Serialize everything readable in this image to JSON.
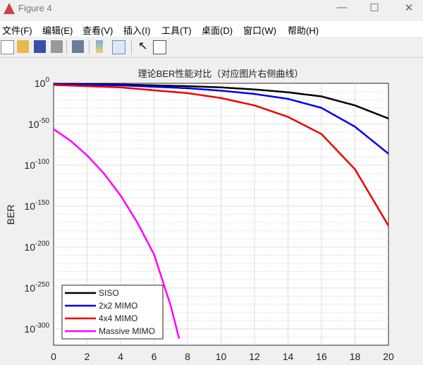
{
  "window": {
    "title": "Figure 4",
    "minimize": "—",
    "maximize": "☐",
    "close": "✕"
  },
  "menu": [
    "文件(F)",
    "编辑(E)",
    "查看(V)",
    "插入(I)",
    "工具(T)",
    "桌面(D)",
    "窗口(W)",
    "帮助(H)"
  ],
  "toolbar": [
    "new-file-icon",
    "open-folder-icon",
    "save-icon",
    "print-icon",
    "print-preview-icon",
    "colorbar-icon",
    "legend-icon",
    "pointer-icon",
    "property-editor-icon"
  ],
  "chart_data": {
    "type": "line",
    "title": "理论BER性能对比（对应图片右侧曲线）",
    "xlabel": "",
    "ylabel": "BER",
    "xlim": [
      0,
      20
    ],
    "ylim": [
      "1e-320",
      "1e0"
    ],
    "yscale": "log",
    "xticks": [
      "0",
      "2",
      "4",
      "6",
      "8",
      "10",
      "12",
      "14",
      "16",
      "18",
      "20"
    ],
    "yticks": [
      {
        "base": "10",
        "exp": "0"
      },
      {
        "base": "10",
        "exp": "-50"
      },
      {
        "base": "10",
        "exp": "-100"
      },
      {
        "base": "10",
        "exp": "-150"
      },
      {
        "base": "10",
        "exp": "-200"
      },
      {
        "base": "10",
        "exp": "-250"
      },
      {
        "base": "10",
        "exp": "-300"
      }
    ],
    "grid": true,
    "legend_position": "bottom-left",
    "series": [
      {
        "name": "SISO",
        "color": "#000000",
        "x": [
          0,
          4,
          8,
          10,
          12,
          14,
          16,
          18,
          20
        ],
        "log10_y": [
          -0.5,
          -1.5,
          -3.5,
          -5,
          -7.5,
          -11,
          -16,
          -27,
          -43
        ]
      },
      {
        "name": "2x2 MIMO",
        "color": "#0000ee",
        "x": [
          0,
          4,
          8,
          10,
          12,
          14,
          16,
          18,
          20
        ],
        "log10_y": [
          -1,
          -2.5,
          -6,
          -9,
          -13,
          -19,
          -30,
          -53,
          -86
        ]
      },
      {
        "name": "4x4 MIMO",
        "color": "#ee0000",
        "x": [
          0,
          4,
          8,
          10,
          12,
          14,
          16,
          18,
          20
        ],
        "log10_y": [
          -2,
          -5,
          -12,
          -18,
          -27,
          -41,
          -62,
          -105,
          -174
        ]
      },
      {
        "name": "Massive MIMO",
        "color": "#ff00ff",
        "x": [
          0,
          1,
          2,
          3,
          4,
          5,
          6,
          7,
          7.5
        ],
        "log10_y": [
          -56,
          -70,
          -88,
          -110,
          -137,
          -170,
          -209,
          -272,
          -312
        ]
      }
    ]
  }
}
